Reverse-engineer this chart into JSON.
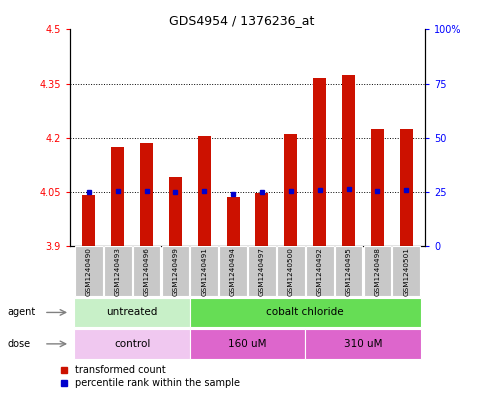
{
  "title": "GDS4954 / 1376236_at",
  "samples": [
    "GSM1240490",
    "GSM1240493",
    "GSM1240496",
    "GSM1240499",
    "GSM1240491",
    "GSM1240494",
    "GSM1240497",
    "GSM1240500",
    "GSM1240492",
    "GSM1240495",
    "GSM1240498",
    "GSM1240501"
  ],
  "red_values": [
    4.04,
    4.175,
    4.185,
    4.09,
    4.205,
    4.035,
    4.045,
    4.21,
    4.365,
    4.375,
    4.225,
    4.225
  ],
  "blue_values": [
    4.048,
    4.052,
    4.052,
    4.048,
    4.052,
    4.042,
    4.048,
    4.052,
    4.055,
    4.057,
    4.052,
    4.055
  ],
  "baseline": 3.9,
  "ylim_left": [
    3.9,
    4.5
  ],
  "ylim_right": [
    0,
    100
  ],
  "yticks_left": [
    3.9,
    4.05,
    4.2,
    4.35,
    4.5
  ],
  "yticks_right": [
    0,
    25,
    50,
    75,
    100
  ],
  "ytick_labels_left": [
    "3.9",
    "4.05",
    "4.2",
    "4.35",
    "4.5"
  ],
  "ytick_labels_right": [
    "0",
    "25",
    "50",
    "75",
    "100%"
  ],
  "grid_lines": [
    4.05,
    4.2,
    4.35
  ],
  "agent_groups": [
    {
      "label": "untreated",
      "start": 0,
      "end": 4,
      "color": "#c8f0c8"
    },
    {
      "label": "cobalt chloride",
      "start": 4,
      "end": 12,
      "color": "#66dd55"
    }
  ],
  "dose_groups": [
    {
      "label": "control",
      "start": 0,
      "end": 4,
      "color": "#f0c8f0"
    },
    {
      "label": "160 uM",
      "start": 4,
      "end": 8,
      "color": "#dd66cc"
    },
    {
      "label": "310 uM",
      "start": 8,
      "end": 12,
      "color": "#dd66cc"
    }
  ],
  "bar_color": "#cc1100",
  "dot_color": "#0000cc",
  "bar_width": 0.45,
  "sample_box_color": "#c8c8c8",
  "legend_items": [
    {
      "color": "#cc1100",
      "marker": "s",
      "label": "transformed count"
    },
    {
      "color": "#0000cc",
      "marker": "s",
      "label": "percentile rank within the sample"
    }
  ]
}
